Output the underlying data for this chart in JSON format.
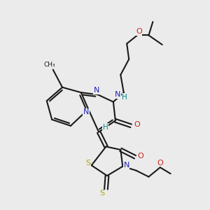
{
  "background_color": "#ebebeb",
  "bond_color": "#1a1a1a",
  "N_color": "#2222bb",
  "O_color": "#cc2222",
  "S_color": "#aaaa00",
  "H_color": "#008888",
  "figsize": [
    3.0,
    3.0
  ],
  "dpi": 100,
  "xlim": [
    0,
    10
  ],
  "ylim": [
    0,
    10
  ]
}
